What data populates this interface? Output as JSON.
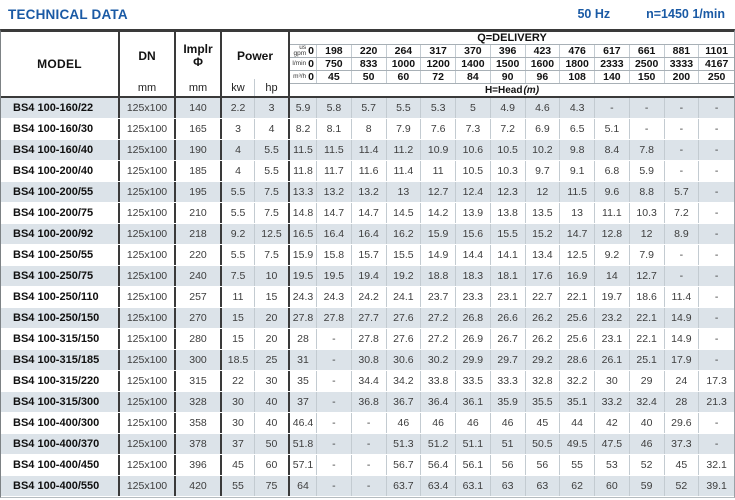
{
  "header": {
    "title": "TECHNICAL DATA",
    "frequency": "50 Hz",
    "speed": "n=1450 1/min"
  },
  "colors": {
    "accent_blue": "#1a5aa5",
    "row_shaded": "#dce3e9",
    "border_dark": "#3a3a3a"
  },
  "table": {
    "model_header": "MODEL",
    "dn_header": "DN",
    "dn_unit": "mm",
    "implr_header": "Implr",
    "implr_symbol": "Φ",
    "implr_unit": "mm",
    "power_header": "Power",
    "power_unit_kw": "kw",
    "power_unit_hp": "hp",
    "delivery_header": "Q=DELIVERY",
    "head_label": "H=Head",
    "head_unit": "(m)",
    "flow_rows": [
      {
        "label_lines": [
          "us",
          "gpm"
        ],
        "zero": "0",
        "values": [
          "198",
          "220",
          "264",
          "317",
          "370",
          "396",
          "423",
          "476",
          "617",
          "661",
          "881",
          "1101"
        ]
      },
      {
        "label_lines": [
          "l/min"
        ],
        "zero": "0",
        "values": [
          "750",
          "833",
          "1000",
          "1200",
          "1400",
          "1500",
          "1600",
          "1800",
          "2333",
          "2500",
          "3333",
          "4167"
        ]
      },
      {
        "label_lines": [
          "m³/h"
        ],
        "zero": "0",
        "values": [
          "45",
          "50",
          "60",
          "72",
          "84",
          "90",
          "96",
          "108",
          "140",
          "150",
          "200",
          "250"
        ]
      }
    ],
    "rows": [
      {
        "model": "BS4 100-160/22",
        "dn": "125x100",
        "implr": "140",
        "kw": "2.2",
        "hp": "3",
        "head": [
          "5.9",
          "5.8",
          "5.7",
          "5.5",
          "5.3",
          "5",
          "4.9",
          "4.6",
          "4.3",
          "-",
          "-",
          "-",
          "-"
        ]
      },
      {
        "model": "BS4 100-160/30",
        "dn": "125x100",
        "implr": "165",
        "kw": "3",
        "hp": "4",
        "head": [
          "8.2",
          "8.1",
          "8",
          "7.9",
          "7.6",
          "7.3",
          "7.2",
          "6.9",
          "6.5",
          "5.1",
          "-",
          "-",
          "-"
        ]
      },
      {
        "model": "BS4 100-160/40",
        "dn": "125x100",
        "implr": "190",
        "kw": "4",
        "hp": "5.5",
        "head": [
          "11.5",
          "11.5",
          "11.4",
          "11.2",
          "10.9",
          "10.6",
          "10.5",
          "10.2",
          "9.8",
          "8.4",
          "7.8",
          "-",
          "-"
        ]
      },
      {
        "model": "BS4 100-200/40",
        "dn": "125x100",
        "implr": "185",
        "kw": "4",
        "hp": "5.5",
        "head": [
          "11.8",
          "11.7",
          "11.6",
          "11.4",
          "11",
          "10.5",
          "10.3",
          "9.7",
          "9.1",
          "6.8",
          "5.9",
          "-",
          "-"
        ]
      },
      {
        "model": "BS4 100-200/55",
        "dn": "125x100",
        "implr": "195",
        "kw": "5.5",
        "hp": "7.5",
        "head": [
          "13.3",
          "13.2",
          "13.2",
          "13",
          "12.7",
          "12.4",
          "12.3",
          "12",
          "11.5",
          "9.6",
          "8.8",
          "5.7",
          "-"
        ]
      },
      {
        "model": "BS4 100-200/75",
        "dn": "125x100",
        "implr": "210",
        "kw": "5.5",
        "hp": "7.5",
        "head": [
          "14.8",
          "14.7",
          "14.7",
          "14.5",
          "14.2",
          "13.9",
          "13.8",
          "13.5",
          "13",
          "11.1",
          "10.3",
          "7.2",
          "-"
        ]
      },
      {
        "model": "BS4 100-200/92",
        "dn": "125x100",
        "implr": "218",
        "kw": "9.2",
        "hp": "12.5",
        "head": [
          "16.5",
          "16.4",
          "16.4",
          "16.2",
          "15.9",
          "15.6",
          "15.5",
          "15.2",
          "14.7",
          "12.8",
          "12",
          "8.9",
          "-"
        ]
      },
      {
        "model": "BS4 100-250/55",
        "dn": "125x100",
        "implr": "220",
        "kw": "5.5",
        "hp": "7.5",
        "head": [
          "15.9",
          "15.8",
          "15.7",
          "15.5",
          "14.9",
          "14.4",
          "14.1",
          "13.4",
          "12.5",
          "9.2",
          "7.9",
          "-",
          "-"
        ]
      },
      {
        "model": "BS4 100-250/75",
        "dn": "125x100",
        "implr": "240",
        "kw": "7.5",
        "hp": "10",
        "head": [
          "19.5",
          "19.5",
          "19.4",
          "19.2",
          "18.8",
          "18.3",
          "18.1",
          "17.6",
          "16.9",
          "14",
          "12.7",
          "-",
          "-"
        ]
      },
      {
        "model": "BS4 100-250/110",
        "dn": "125x100",
        "implr": "257",
        "kw": "11",
        "hp": "15",
        "head": [
          "24.3",
          "24.3",
          "24.2",
          "24.1",
          "23.7",
          "23.3",
          "23.1",
          "22.7",
          "22.1",
          "19.7",
          "18.6",
          "11.4",
          "-"
        ]
      },
      {
        "model": "BS4 100-250/150",
        "dn": "125x100",
        "implr": "270",
        "kw": "15",
        "hp": "20",
        "head": [
          "27.8",
          "27.8",
          "27.7",
          "27.6",
          "27.2",
          "26.8",
          "26.6",
          "26.2",
          "25.6",
          "23.2",
          "22.1",
          "14.9",
          "-"
        ]
      },
      {
        "model": "BS4 100-315/150",
        "dn": "125x100",
        "implr": "280",
        "kw": "15",
        "hp": "20",
        "head": [
          "28",
          "-",
          "27.8",
          "27.6",
          "27.2",
          "26.9",
          "26.7",
          "26.2",
          "25.6",
          "23.1",
          "22.1",
          "14.9",
          "-"
        ]
      },
      {
        "model": "BS4 100-315/185",
        "dn": "125x100",
        "implr": "300",
        "kw": "18.5",
        "hp": "25",
        "head": [
          "31",
          "-",
          "30.8",
          "30.6",
          "30.2",
          "29.9",
          "29.7",
          "29.2",
          "28.6",
          "26.1",
          "25.1",
          "17.9",
          "-"
        ]
      },
      {
        "model": "BS4 100-315/220",
        "dn": "125x100",
        "implr": "315",
        "kw": "22",
        "hp": "30",
        "head": [
          "35",
          "-",
          "34.4",
          "34.2",
          "33.8",
          "33.5",
          "33.3",
          "32.8",
          "32.2",
          "30",
          "29",
          "24",
          "17.3"
        ]
      },
      {
        "model": "BS4 100-315/300",
        "dn": "125x100",
        "implr": "328",
        "kw": "30",
        "hp": "40",
        "head": [
          "37",
          "-",
          "36.8",
          "36.7",
          "36.4",
          "36.1",
          "35.9",
          "35.5",
          "35.1",
          "33.2",
          "32.4",
          "28",
          "21.3"
        ]
      },
      {
        "model": "BS4 100-400/300",
        "dn": "125x100",
        "implr": "358",
        "kw": "30",
        "hp": "40",
        "head": [
          "46.4",
          "-",
          "-",
          "46",
          "46",
          "46",
          "46",
          "45",
          "44",
          "42",
          "40",
          "29.6",
          "-"
        ]
      },
      {
        "model": "BS4 100-400/370",
        "dn": "125x100",
        "implr": "378",
        "kw": "37",
        "hp": "50",
        "head": [
          "51.8",
          "-",
          "-",
          "51.3",
          "51.2",
          "51.1",
          "51",
          "50.5",
          "49.5",
          "47.5",
          "46",
          "37.3",
          "-"
        ]
      },
      {
        "model": "BS4 100-400/450",
        "dn": "125x100",
        "implr": "396",
        "kw": "45",
        "hp": "60",
        "head": [
          "57.1",
          "-",
          "-",
          "56.7",
          "56.4",
          "56.1",
          "56",
          "56",
          "55",
          "53",
          "52",
          "45",
          "32.1"
        ]
      },
      {
        "model": "BS4 100-400/550",
        "dn": "125x100",
        "implr": "420",
        "kw": "55",
        "hp": "75",
        "head": [
          "64",
          "-",
          "-",
          "63.7",
          "63.4",
          "63.1",
          "63",
          "63",
          "62",
          "60",
          "59",
          "52",
          "39.1"
        ]
      }
    ]
  }
}
